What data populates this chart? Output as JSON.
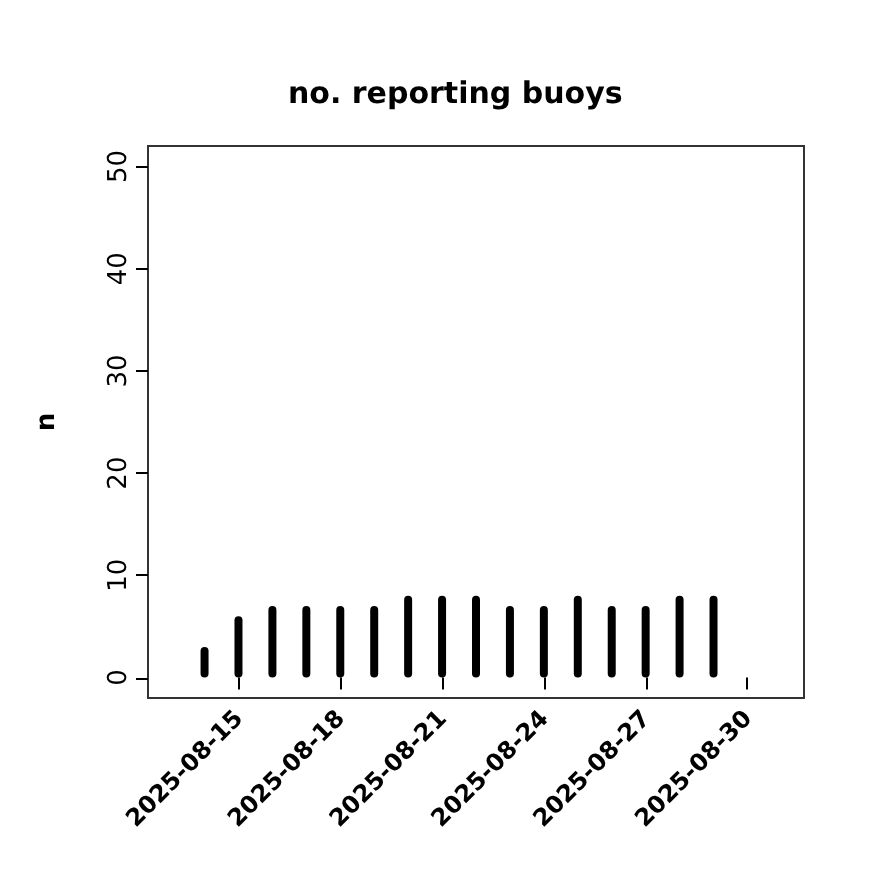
{
  "chart_data": {
    "type": "bar",
    "title": "no. reporting buoys",
    "ylabel": "n",
    "x": [
      "2025-08-14",
      "2025-08-15",
      "2025-08-16",
      "2025-08-17",
      "2025-08-18",
      "2025-08-19",
      "2025-08-20",
      "2025-08-21",
      "2025-08-22",
      "2025-08-23",
      "2025-08-24",
      "2025-08-25",
      "2025-08-26",
      "2025-08-27",
      "2025-08-28",
      "2025-08-29",
      "2025-08-30"
    ],
    "values": [
      3,
      6,
      7,
      7,
      7,
      7,
      8,
      8,
      8,
      7,
      7,
      8,
      7,
      7,
      8,
      8,
      0
    ],
    "color": "#000000",
    "xlim": [
      "2025-08-12T08:00",
      "2025-08-31T16:00"
    ],
    "xticks": [
      "2025-08-15",
      "2025-08-18",
      "2025-08-21",
      "2025-08-24",
      "2025-08-27",
      "2025-08-30"
    ],
    "ylim": [
      -2,
      52
    ],
    "yticks": [
      0,
      10,
      20,
      30,
      40,
      50
    ],
    "grid": false
  }
}
